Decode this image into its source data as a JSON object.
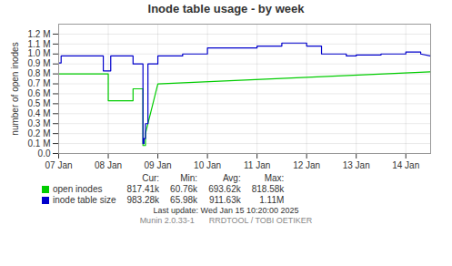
{
  "chart_data": {
    "type": "line",
    "title": "Inode table usage - by week",
    "ylabel": "number of open inodes",
    "xlim": [
      0,
      7.5
    ],
    "xticks": [
      {
        "value": 0,
        "label": "07 Jan"
      },
      {
        "value": 1,
        "label": "08 Jan"
      },
      {
        "value": 2,
        "label": "09 Jan"
      },
      {
        "value": 3,
        "label": "10 Jan"
      },
      {
        "value": 4,
        "label": "11 Jan"
      },
      {
        "value": 5,
        "label": "12 Jan"
      },
      {
        "value": 6,
        "label": "13 Jan"
      },
      {
        "value": 7,
        "label": "14 Jan"
      }
    ],
    "ylim": [
      0,
      1300000
    ],
    "yticks": [
      {
        "value": 0,
        "label": "0.0"
      },
      {
        "value": 100000,
        "label": "0.1 M"
      },
      {
        "value": 200000,
        "label": "0.2 M"
      },
      {
        "value": 300000,
        "label": "0.3 M"
      },
      {
        "value": 400000,
        "label": "0.4 M"
      },
      {
        "value": 500000,
        "label": "0.5 M"
      },
      {
        "value": 600000,
        "label": "0.6 M"
      },
      {
        "value": 700000,
        "label": "0.7 M"
      },
      {
        "value": 800000,
        "label": "0.8 M"
      },
      {
        "value": 900000,
        "label": "0.9 M"
      },
      {
        "value": 1000000,
        "label": "1.0 M"
      },
      {
        "value": 1100000,
        "label": "1.1 M"
      },
      {
        "value": 1200000,
        "label": "1.2 M"
      }
    ],
    "grid": true,
    "stats_headers": [
      "Cur:",
      "Min:",
      "Avg:",
      "Max:"
    ],
    "series": [
      {
        "name": "open inodes",
        "color": "#00cc00",
        "x": [
          0,
          1.0,
          1.0,
          1.5,
          1.5,
          1.7,
          1.7,
          1.75,
          1.75,
          2.0,
          2.0,
          7.5
        ],
        "values": [
          800000,
          800000,
          530000,
          530000,
          650000,
          650000,
          80000,
          80000,
          200000,
          700000,
          700000,
          820000
        ],
        "stats": [
          "817.41k",
          "60.76k",
          "693.62k",
          "818.58k"
        ]
      },
      {
        "name": "inode table size",
        "color": "#0000cc",
        "x": [
          0,
          0.05,
          0.05,
          0.9,
          0.9,
          1.05,
          1.05,
          1.5,
          1.5,
          1.7,
          1.7,
          1.72,
          1.72,
          1.75,
          1.75,
          1.8,
          1.8,
          2.0,
          2.0,
          2.5,
          2.5,
          3.0,
          3.0,
          4.0,
          4.0,
          4.5,
          4.5,
          5.0,
          5.0,
          5.3,
          5.3,
          5.8,
          5.8,
          6.0,
          6.0,
          6.5,
          6.5,
          7.0,
          7.0,
          7.3,
          7.3,
          7.5
        ],
        "values": [
          910000,
          910000,
          980000,
          980000,
          830000,
          830000,
          980000,
          980000,
          900000,
          900000,
          100000,
          100000,
          150000,
          150000,
          300000,
          300000,
          900000,
          900000,
          980000,
          980000,
          1000000,
          1000000,
          1060000,
          1060000,
          1080000,
          1080000,
          1110000,
          1110000,
          1080000,
          1080000,
          1000000,
          1000000,
          980000,
          980000,
          990000,
          990000,
          1000000,
          1000000,
          1020000,
          1020000,
          1000000,
          980000
        ],
        "stats": [
          "983.28k",
          "65.98k",
          "911.63k",
          "1.11M"
        ]
      }
    ],
    "annotations": [
      "Last update: Wed Jan 15 10:20:00 2025",
      "Munin 2.0.33-1",
      "RRDTOOL / TOBI OETIKER"
    ]
  }
}
